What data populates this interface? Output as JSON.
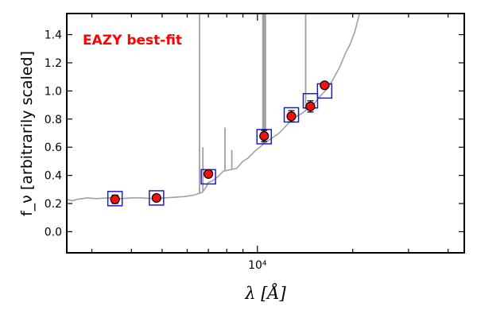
{
  "chart_data": {
    "type": "scatter",
    "title": "",
    "annotation": "EAZY best-fit",
    "xlabel": "λ [Å]",
    "ylabel": "f_ν [arbitrarily scaled]",
    "xscale": "log",
    "xlim": [
      2500,
      45000
    ],
    "ylim": [
      -0.15,
      1.55
    ],
    "yticks": [
      0.0,
      0.2,
      0.4,
      0.6,
      0.8,
      1.0,
      1.2,
      1.4
    ],
    "ytick_labels": [
      "0.0",
      "0.2",
      "0.4",
      "0.6",
      "0.8",
      "1.0",
      "1.2",
      "1.4"
    ],
    "xtick_label": "10⁴",
    "xtick_label_value": 10000,
    "grid": false,
    "colors": {
      "model": "#a0a0a0",
      "points_fill": "#ee1111",
      "points_edge": "#000000",
      "boxes": "#1a1adb",
      "annotation": "#ff0000"
    },
    "series": [
      {
        "kind": "model_spectrum",
        "x": [
          2500,
          2600,
          2700,
          2900,
          3100,
          3400,
          3700,
          4000,
          4300,
          4700,
          5100,
          5500,
          5900,
          6300,
          6700,
          6900,
          7000,
          7200,
          7500,
          7800,
          8200,
          8600,
          9000,
          9300,
          9600,
          9900,
          10300,
          10700,
          11200,
          11700,
          12300,
          12800,
          13300,
          13800,
          14400,
          15000,
          15600,
          16200,
          16800,
          17500,
          18200,
          18900,
          19600,
          20300,
          21000
        ],
        "y": [
          0.23,
          0.22,
          0.23,
          0.24,
          0.235,
          0.24,
          0.235,
          0.24,
          0.24,
          0.235,
          0.24,
          0.245,
          0.25,
          0.26,
          0.28,
          0.32,
          0.35,
          0.36,
          0.39,
          0.43,
          0.44,
          0.45,
          0.5,
          0.52,
          0.55,
          0.58,
          0.61,
          0.64,
          0.67,
          0.7,
          0.75,
          0.79,
          0.82,
          0.84,
          0.87,
          0.9,
          0.95,
          0.99,
          1.03,
          1.1,
          1.17,
          1.26,
          1.33,
          1.42,
          1.55
        ]
      },
      {
        "kind": "emission_lines",
        "x": [
          6563,
          6725,
          7900,
          8300,
          10400,
          10500,
          10600,
          14200
        ],
        "y_top": [
          1.55,
          0.6,
          0.74,
          0.58,
          1.55,
          1.55,
          1.55,
          1.55
        ]
      },
      {
        "kind": "observed_photometry",
        "x": [
          3550,
          4800,
          7000,
          10500,
          12800,
          14700,
          16300
        ],
        "y": [
          0.23,
          0.24,
          0.41,
          0.68,
          0.82,
          0.89,
          1.04
        ],
        "yerr": [
          0.03,
          0.015,
          0.02,
          0.04,
          0.04,
          0.04,
          0.02
        ]
      },
      {
        "kind": "model_photometry",
        "x": [
          3550,
          4800,
          7000,
          10500,
          12800,
          14700,
          16300
        ],
        "y": [
          0.235,
          0.24,
          0.39,
          0.675,
          0.83,
          0.93,
          1.0
        ]
      }
    ]
  }
}
